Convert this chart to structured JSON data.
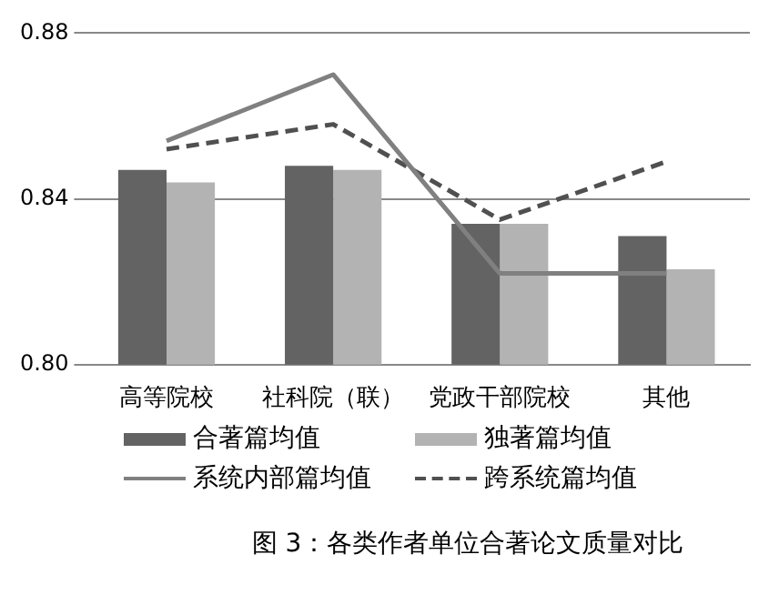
{
  "chart_data": {
    "type": "bar",
    "title": "图 3：各类作者单位合著论文质量对比",
    "categories": [
      "高等院校",
      "社科院（联）",
      "党政干部院校",
      "其他"
    ],
    "series": [
      {
        "name": "合著篇均值",
        "color": "#636363",
        "values": [
          0.847,
          0.848,
          0.834,
          0.831
        ]
      },
      {
        "name": "独著篇均值",
        "color": "#b3b3b3",
        "values": [
          0.844,
          0.847,
          0.834,
          0.823
        ]
      },
      {
        "name": "系统内部篇均值",
        "type": "line",
        "color": "#808080",
        "line_style": "solid",
        "values": [
          0.854,
          0.87,
          0.822,
          0.822
        ]
      },
      {
        "name": "跨系统篇均值",
        "type": "line",
        "color": "#505050",
        "line_style": "dashed",
        "values": [
          0.852,
          0.858,
          0.835,
          0.849
        ]
      }
    ],
    "ylim": [
      0.8,
      0.88
    ],
    "yticks": [
      {
        "value": 0.8,
        "label": "0.80"
      },
      0.84,
      0.88
    ],
    "grid": "y",
    "legend": "bottom",
    "marker": "none"
  }
}
